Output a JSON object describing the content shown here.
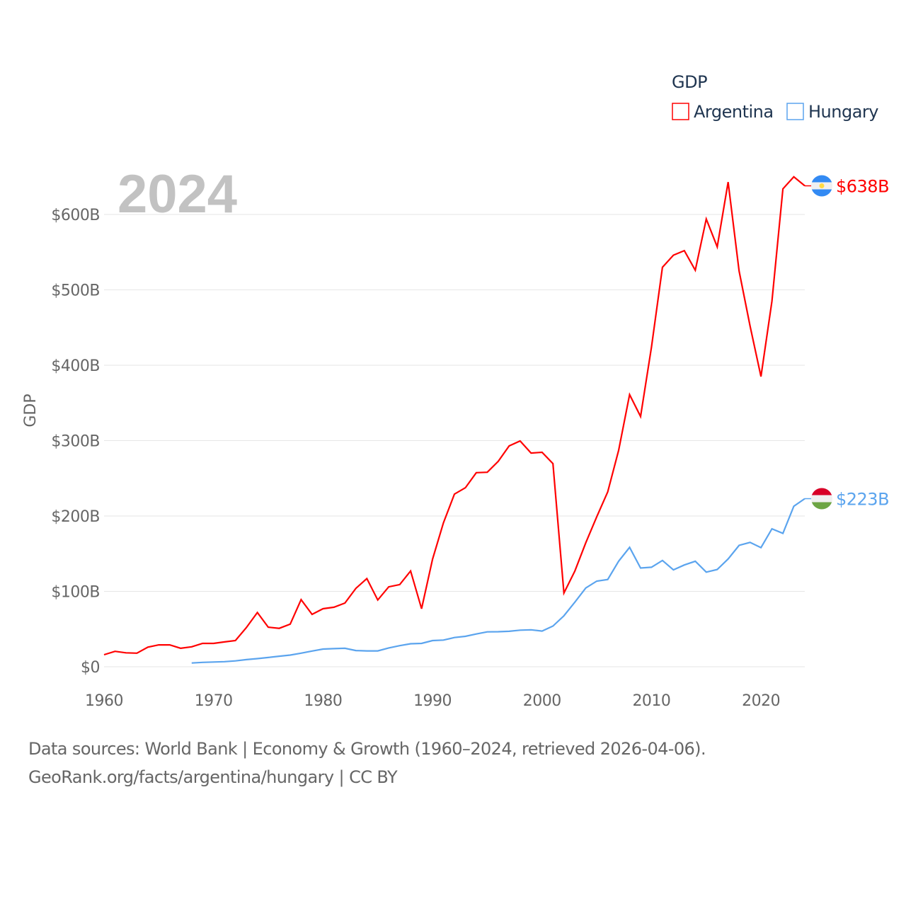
{
  "chart_data": {
    "type": "line",
    "title": "GDP",
    "year_label": "2024",
    "ylabel": "GDP",
    "xlabel": "",
    "xlim": [
      1960,
      2024
    ],
    "ylim": [
      0,
      650
    ],
    "y_unit": "billion USD",
    "grid": true,
    "legend_position": "top-right",
    "x_ticks": [
      "1960",
      "1970",
      "1980",
      "1990",
      "2000",
      "2010",
      "2020"
    ],
    "y_ticks": [
      {
        "value": 0,
        "label": "$0"
      },
      {
        "value": 100,
        "label": "$100B"
      },
      {
        "value": 200,
        "label": "$200B"
      },
      {
        "value": 300,
        "label": "$300B"
      },
      {
        "value": 400,
        "label": "$400B"
      },
      {
        "value": 500,
        "label": "$500B"
      },
      {
        "value": 600,
        "label": "$600B"
      }
    ],
    "series": [
      {
        "name": "Argentina",
        "color": "#ff0000",
        "end_label": "$638B",
        "flag": "argentina-flag",
        "start_year": 1960,
        "values": [
          16,
          20.5,
          18.5,
          18,
          26,
          29,
          29,
          24.5,
          26.5,
          31,
          31,
          33,
          34.7,
          52,
          72,
          52.5,
          51,
          56.5,
          89,
          69.5,
          77,
          79,
          84.5,
          104,
          117,
          88.5,
          106,
          109,
          127,
          77,
          142.7,
          191,
          229,
          237.5,
          257.5,
          258,
          272.5,
          293,
          299.5,
          283.5,
          284.5,
          269.5,
          97.7,
          127,
          164.5,
          199,
          232,
          287,
          361,
          332,
          424,
          530,
          546,
          552,
          526,
          594,
          557,
          643,
          525,
          452,
          385,
          485,
          634,
          650,
          638
        ]
      },
      {
        "name": "Hungary",
        "color": "#5ba4ee",
        "end_label": "$223B",
        "flag": "hungary-flag",
        "start_year": 1968,
        "values": [
          5,
          5.8,
          6.3,
          6.8,
          7.8,
          9.5,
          10.8,
          12.3,
          14,
          15.5,
          18,
          20.8,
          23.5,
          24,
          24.5,
          21.5,
          21,
          21,
          25,
          28,
          30.5,
          31,
          34.7,
          35.4,
          38.8,
          40.4,
          43.5,
          46.3,
          46.5,
          47,
          48.5,
          49,
          47.3,
          54,
          67.6,
          85.7,
          104.5,
          113.6,
          115.8,
          140,
          158.4,
          131,
          132,
          141,
          128.5,
          135,
          140,
          125.5,
          129,
          143,
          161,
          165,
          158,
          183,
          177,
          213,
          223
        ]
      }
    ]
  },
  "footer": {
    "line1": "Data sources: World Bank | Economy & Growth (1960–2024, retrieved 2026-04-06).",
    "line2": "GeoRank.org/facts/argentina/hungary | CC BY"
  }
}
